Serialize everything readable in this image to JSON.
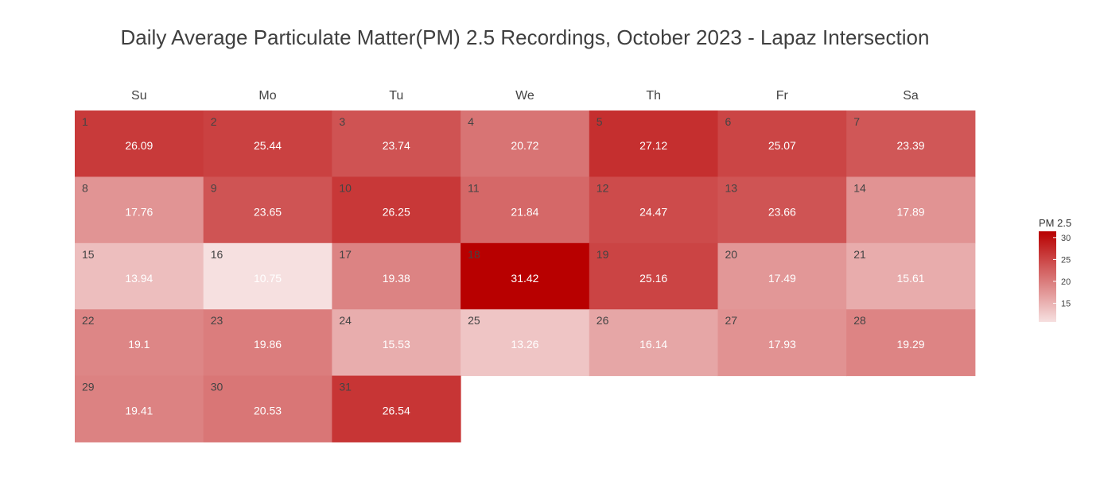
{
  "chart_data": {
    "type": "heatmap",
    "title": "Daily Average Particulate Matter(PM) 2.5 Recordings, October 2023 - Lapaz Intersection",
    "weekdays": [
      "Su",
      "Mo",
      "Tu",
      "We",
      "Th",
      "Fr",
      "Sa"
    ],
    "first_weekday_index": 0,
    "days": [
      {
        "day": 1,
        "value": 26.09
      },
      {
        "day": 2,
        "value": 25.44
      },
      {
        "day": 3,
        "value": 23.74
      },
      {
        "day": 4,
        "value": 20.72
      },
      {
        "day": 5,
        "value": 27.12
      },
      {
        "day": 6,
        "value": 25.07
      },
      {
        "day": 7,
        "value": 23.39
      },
      {
        "day": 8,
        "value": 17.76
      },
      {
        "day": 9,
        "value": 23.65
      },
      {
        "day": 10,
        "value": 26.25
      },
      {
        "day": 11,
        "value": 21.84
      },
      {
        "day": 12,
        "value": 24.47
      },
      {
        "day": 13,
        "value": 23.66
      },
      {
        "day": 14,
        "value": 17.89
      },
      {
        "day": 15,
        "value": 13.94
      },
      {
        "day": 16,
        "value": 10.75
      },
      {
        "day": 17,
        "value": 19.38
      },
      {
        "day": 18,
        "value": 31.42
      },
      {
        "day": 19,
        "value": 25.16
      },
      {
        "day": 20,
        "value": 17.49
      },
      {
        "day": 21,
        "value": 15.61
      },
      {
        "day": 22,
        "value": 19.1
      },
      {
        "day": 23,
        "value": 19.86
      },
      {
        "day": 24,
        "value": 15.53
      },
      {
        "day": 25,
        "value": 13.26
      },
      {
        "day": 26,
        "value": 16.14
      },
      {
        "day": 27,
        "value": 17.93
      },
      {
        "day": 28,
        "value": 19.29
      },
      {
        "day": 29,
        "value": 19.41
      },
      {
        "day": 30,
        "value": 20.53
      },
      {
        "day": 31,
        "value": 26.54
      }
    ],
    "colorbar": {
      "title": "PM 2.5",
      "min": 10.75,
      "max": 31.42,
      "ticks": [
        15,
        20,
        25,
        30
      ],
      "low_color": "#ffffff",
      "high_color": "#b80000"
    }
  }
}
